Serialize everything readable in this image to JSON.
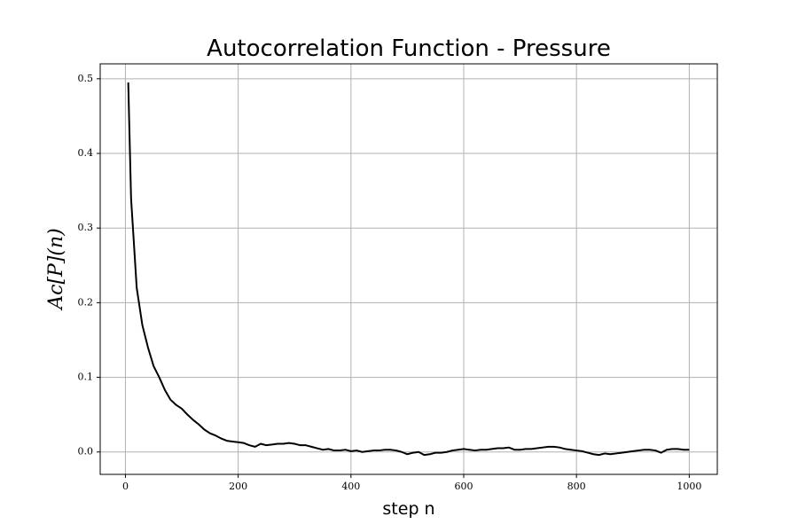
{
  "chart_data": {
    "type": "line",
    "title": "Autocorrelation Function - Pressure",
    "xlabel": "step n",
    "ylabel": "Ac[P](n)",
    "x": [
      5,
      10,
      20,
      30,
      40,
      50,
      60,
      70,
      80,
      90,
      100,
      110,
      120,
      130,
      140,
      150,
      160,
      170,
      180,
      190,
      200,
      210,
      220,
      230,
      240,
      250,
      260,
      270,
      280,
      290,
      300,
      310,
      320,
      330,
      340,
      350,
      360,
      370,
      380,
      390,
      400,
      410,
      420,
      430,
      440,
      450,
      460,
      470,
      480,
      490,
      500,
      510,
      520,
      530,
      540,
      550,
      560,
      570,
      580,
      590,
      600,
      610,
      620,
      630,
      640,
      650,
      660,
      670,
      680,
      690,
      700,
      710,
      720,
      730,
      740,
      750,
      760,
      770,
      780,
      790,
      800,
      810,
      820,
      830,
      840,
      850,
      860,
      870,
      880,
      890,
      900,
      910,
      920,
      930,
      940,
      950,
      960,
      970,
      980,
      990,
      1000
    ],
    "series": [
      {
        "name": "Ac[P](n)",
        "color": "#000000",
        "values": [
          0.495,
          0.34,
          0.22,
          0.17,
          0.14,
          0.115,
          0.1,
          0.083,
          0.07,
          0.063,
          0.058,
          0.05,
          0.043,
          0.037,
          0.03,
          0.025,
          0.022,
          0.018,
          0.015,
          0.014,
          0.013,
          0.012,
          0.009,
          0.007,
          0.011,
          0.009,
          0.01,
          0.011,
          0.011,
          0.012,
          0.011,
          0.009,
          0.009,
          0.007,
          0.005,
          0.003,
          0.004,
          0.002,
          0.002,
          0.003,
          0.001,
          0.002,
          0.0,
          0.001,
          0.002,
          0.002,
          0.003,
          0.003,
          0.002,
          0.0,
          -0.003,
          -0.001,
          0.0,
          -0.004,
          -0.003,
          -0.001,
          -0.001,
          0.0,
          0.002,
          0.003,
          0.004,
          0.003,
          0.002,
          0.003,
          0.003,
          0.004,
          0.005,
          0.005,
          0.006,
          0.003,
          0.003,
          0.004,
          0.004,
          0.005,
          0.006,
          0.007,
          0.007,
          0.006,
          0.004,
          0.003,
          0.002,
          0.001,
          -0.001,
          -0.003,
          -0.004,
          -0.002,
          -0.003,
          -0.002,
          -0.001,
          0.0,
          0.001,
          0.002,
          0.003,
          0.003,
          0.002,
          -0.001,
          0.003,
          0.004,
          0.004,
          0.003,
          0.003
        ]
      }
    ],
    "xlim": [
      -44.75,
      1049.75
    ],
    "ylim": [
      -0.03,
      0.52
    ],
    "xticks": [
      0,
      200,
      400,
      600,
      800,
      1000
    ],
    "yticks": [
      {
        "value": 0,
        "label": "0.0"
      },
      0.1,
      0.2,
      0.3,
      0.4,
      0.5
    ],
    "grid": true
  }
}
